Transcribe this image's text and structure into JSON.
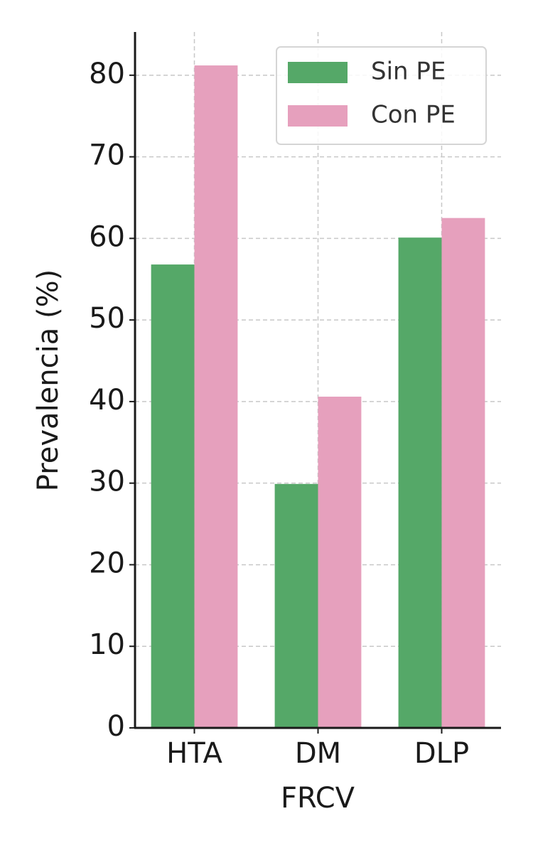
{
  "chart_data": {
    "type": "bar",
    "x_label": "FRCV",
    "y_label": "Prevalencia (%)",
    "categories": [
      "HTA",
      "DM",
      "DLP"
    ],
    "series": [
      {
        "name": "Sin PE",
        "color": "#55a868",
        "values": [
          56.8,
          29.9,
          60.1
        ]
      },
      {
        "name": "Con PE",
        "color": "#e6a0bd",
        "values": [
          81.2,
          40.6,
          62.5
        ]
      }
    ],
    "ylim": [
      0,
      85.3
    ],
    "yticks": [
      0,
      10,
      20,
      30,
      40,
      50,
      60,
      70,
      80
    ],
    "grid": true,
    "legend": "upper right"
  }
}
